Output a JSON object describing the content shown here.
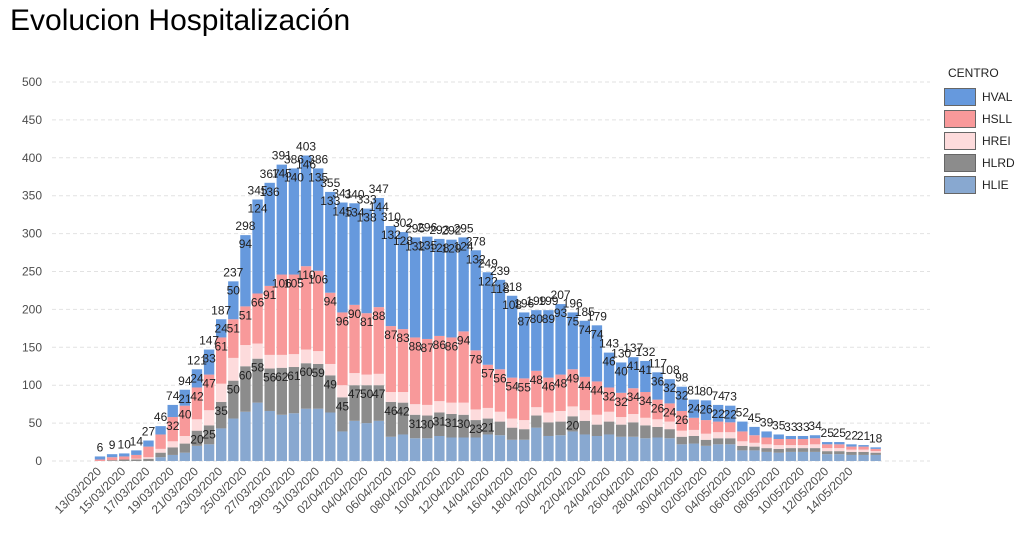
{
  "title": "Evolucion Hospitalización",
  "legend": {
    "title": "CENTRO",
    "items": [
      {
        "name": "HVAL",
        "color": "#6699DD"
      },
      {
        "name": "HSLL",
        "color": "#F8999A"
      },
      {
        "name": "HREI",
        "color": "#FDDBDC"
      },
      {
        "name": "HLRD",
        "color": "#8C8C8C"
      },
      {
        "name": "HLIE",
        "color": "#88A8D0"
      }
    ]
  },
  "chart_data": {
    "type": "bar",
    "stacked": true,
    "title": "Evolucion Hospitalización",
    "xlabel": "",
    "ylabel": "",
    "ylim": [
      0,
      500
    ],
    "yticks": [
      0,
      50,
      100,
      150,
      200,
      250,
      300,
      350,
      400,
      450,
      500
    ],
    "grid": true,
    "legend_position": "right",
    "xtick_labels": [
      "13/03/2020",
      "15/03/2020",
      "17/03/2020",
      "19/03/2020",
      "21/03/2020",
      "23/03/2020",
      "25/03/2020",
      "27/03/2020",
      "29/03/2020",
      "31/03/2020",
      "02/04/2020",
      "04/04/2020",
      "06/04/2020",
      "08/04/2020",
      "10/04/2020",
      "12/04/2020",
      "14/04/2020",
      "16/04/2020",
      "18/04/2020",
      "20/04/2020",
      "22/04/2020",
      "24/04/2020",
      "26/04/2020",
      "28/04/2020",
      "30/04/2020",
      "02/05/2020",
      "04/05/2020",
      "06/05/2020",
      "08/05/2020",
      "10/05/2020",
      "12/05/2020",
      "14/05/2020"
    ],
    "totals": [
      6,
      9,
      10,
      14,
      27,
      46,
      74,
      94,
      121,
      147,
      187,
      237,
      298,
      345,
      367,
      391,
      386,
      403,
      386,
      355,
      341,
      340,
      333,
      347,
      310,
      302,
      295,
      296,
      293,
      292,
      295,
      278,
      249,
      239,
      218,
      196,
      199,
      199,
      207,
      196,
      185,
      179,
      143,
      130,
      137,
      132,
      117,
      108,
      98,
      81,
      80,
      74,
      73,
      52,
      45,
      39,
      35,
      33,
      33,
      34,
      25,
      25,
      22,
      21,
      18
    ],
    "series": [
      {
        "name": "HVAL",
        "values": [
          4,
          4,
          4,
          6,
          8,
          11,
          16,
          21,
          24,
          33,
          24,
          50,
          94,
          124,
          136,
          145,
          140,
          146,
          135,
          133,
          145,
          134,
          138,
          144,
          132,
          128,
          132,
          135,
          128,
          129,
          124,
          132,
          122,
          118,
          108,
          87,
          80,
          89,
          93,
          75,
          74,
          74,
          46,
          40,
          41,
          41,
          36,
          32,
          32,
          24,
          26,
          22,
          22,
          13,
          11,
          8,
          6,
          4,
          4,
          4,
          3,
          3,
          3,
          2,
          2
        ]
      },
      {
        "name": "HSLL",
        "values": [
          2,
          4,
          4,
          5,
          14,
          19,
          32,
          40,
          42,
          47,
          61,
          51,
          51,
          66,
          91,
          106,
          105,
          110,
          106,
          94,
          96,
          90,
          81,
          88,
          87,
          83,
          88,
          87,
          86,
          86,
          94,
          78,
          57,
          56,
          54,
          55,
          48,
          46,
          48,
          49,
          44,
          44,
          32,
          32,
          34,
          34,
          26,
          24,
          26,
          16,
          18,
          14,
          13,
          13,
          10,
          9,
          8,
          8,
          8,
          8,
          5,
          5,
          4,
          4,
          3
        ]
      },
      {
        "name": "HREI",
        "values": [
          0,
          0,
          0,
          1,
          2,
          5,
          8,
          10,
          15,
          20,
          24,
          30,
          28,
          20,
          18,
          17,
          17,
          18,
          17,
          15,
          16,
          16,
          14,
          15,
          13,
          14,
          14,
          14,
          15,
          15,
          16,
          14,
          14,
          13,
          12,
          12,
          11,
          13,
          14,
          13,
          14,
          13,
          13,
          10,
          11,
          10,
          10,
          10,
          8,
          8,
          8,
          8,
          8,
          6,
          5,
          5,
          5,
          4,
          4,
          5,
          4,
          4,
          3,
          3,
          2
        ]
      },
      {
        "name": "HLRD",
        "values": [
          0,
          1,
          2,
          2,
          3,
          6,
          10,
          12,
          20,
          25,
          35,
          50,
          60,
          58,
          56,
          62,
          61,
          60,
          59,
          49,
          45,
          47,
          50,
          47,
          46,
          42,
          31,
          30,
          31,
          31,
          30,
          23,
          21,
          18,
          16,
          14,
          16,
          18,
          18,
          20,
          18,
          15,
          17,
          16,
          19,
          17,
          14,
          12,
          10,
          10,
          8,
          8,
          8,
          6,
          5,
          5,
          5,
          5,
          5,
          5,
          4,
          4,
          4,
          4,
          3
        ]
      },
      {
        "name": "HLIE",
        "values": [
          0,
          0,
          0,
          0,
          0,
          5,
          8,
          11,
          20,
          22,
          43,
          56,
          65,
          77,
          66,
          61,
          63,
          69,
          69,
          64,
          39,
          53,
          50,
          53,
          32,
          35,
          30,
          30,
          33,
          31,
          31,
          31,
          35,
          34,
          28,
          28,
          44,
          33,
          34,
          39,
          35,
          33,
          35,
          32,
          32,
          30,
          31,
          30,
          22,
          23,
          20,
          22,
          22,
          14,
          14,
          12,
          11,
          12,
          12,
          12,
          9,
          9,
          8,
          8,
          8
        ]
      }
    ]
  }
}
